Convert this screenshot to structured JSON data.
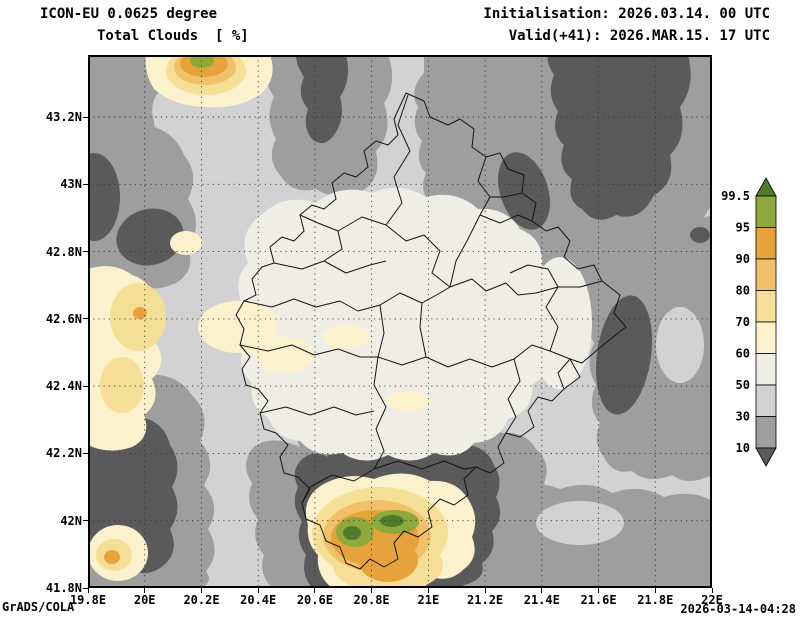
{
  "header": {
    "model": "ICON-EU 0.0625 degree",
    "field": "Total Clouds  [ %]",
    "initialisation": "Initialisation: 2026.03.14. 00 UTC",
    "valid": "Valid(+41): 2026.MAR.15. 17 UTC"
  },
  "axes": {
    "x_ticks": [
      "19.8E",
      "20E",
      "20.2E",
      "20.4E",
      "20.6E",
      "20.8E",
      "21E",
      "21.2E",
      "21.4E",
      "21.6E",
      "21.8E",
      "22E"
    ],
    "y_ticks": [
      "41.8N",
      "42N",
      "42.2N",
      "42.4N",
      "42.6N",
      "42.8N",
      "43N",
      "43.2N"
    ]
  },
  "legend": {
    "labels": [
      "99.5",
      "95",
      "90",
      "80",
      "70",
      "60",
      "50",
      "30",
      "10"
    ],
    "colors": {
      "above": "#4e7c2a",
      "segments": [
        "#8fa83e",
        "#e7a33b",
        "#f0c169",
        "#f5df96",
        "#fbf2cd",
        "#efeee6",
        "#d2d2d2",
        "#9e9e9e"
      ],
      "below": "#5a5a5a"
    }
  },
  "footer": {
    "credit": "GrADS/COLA",
    "timestamp": "2026-03-14-04:28"
  },
  "chart_data": {
    "type": "heatmap",
    "title": "ICON-EU 0.0625 degree — Total Clouds [ % ]",
    "variable": "Total Clouds",
    "units": "%",
    "model": "ICON-EU 0.0625 degree",
    "initialisation": "2026.03.14. 00 UTC",
    "valid": "2026.MAR.15. 17 UTC",
    "forecast_hour": 41,
    "lon_range_deg_east": [
      19.8,
      22.0
    ],
    "lat_range_deg_north": [
      41.8,
      43.39
    ],
    "x_tick_labels": [
      "19.8E",
      "20E",
      "20.2E",
      "20.4E",
      "20.6E",
      "20.8E",
      "21E",
      "21.2E",
      "21.4E",
      "21.6E",
      "21.8E",
      "22E"
    ],
    "y_tick_labels": [
      "41.8N",
      "42N",
      "42.2N",
      "42.4N",
      "42.6N",
      "42.8N",
      "43N",
      "43.2N"
    ],
    "contour_levels_percent": [
      10,
      30,
      50,
      60,
      70,
      80,
      90,
      95,
      99.5
    ],
    "palette_low_to_high": [
      "#5a5a5a",
      "#9e9e9e",
      "#d2d2d2",
      "#efeee6",
      "#fbf2cd",
      "#f5df96",
      "#f0c169",
      "#e7a33b",
      "#8fa83e",
      "#4e7c2a"
    ],
    "legend_position": "right vertical colorbar with over/under arrows",
    "grid": "dotted lat/lon graticule every 0.2 degrees",
    "overlay": "municipal/administrative boundaries (Kosovo region)",
    "features": [
      "cloud maximum >99.5% (green core in orange patch) near 20.75E 41.95N, south of domain",
      "secondary maximum ~95% (orange core) near 20.2E 43.35N, northwest corner",
      "small orange spots near 19.95E 42.6N and 19.85E 41.9N",
      "pale 60-80% band along western edge 42.3N-42.8N",
      "cloud minima <10% (dark gray): northeast quadrant ~20.9-21.7E 42.9-43.3N, east edge ~21.7E 42.3-42.6N, southwest ~19.9-20.2E 41.8-42.3N, dark ring around southern maximum",
      "broad 30-60% (light gray / off-white) over central region"
    ]
  }
}
